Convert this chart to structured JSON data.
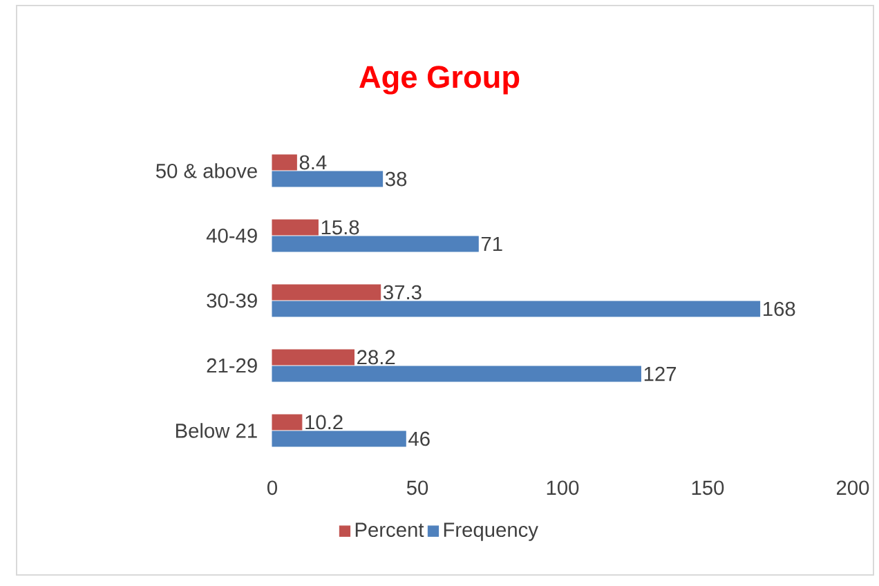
{
  "chart_data": {
    "type": "bar",
    "orientation": "horizontal",
    "title": "Age Group",
    "categories": [
      "50 & above",
      "40-49",
      "30-39",
      "21-29",
      "Below 21"
    ],
    "series": [
      {
        "name": "Percent",
        "color": "#c0504d",
        "values": [
          8.4,
          15.8,
          37.3,
          28.2,
          10.2
        ]
      },
      {
        "name": "Frequency",
        "color": "#4f81bd",
        "values": [
          38,
          71,
          168,
          127,
          46
        ]
      }
    ],
    "xlim": [
      0,
      200
    ],
    "xticks": [
      0,
      50,
      100,
      150,
      200
    ],
    "data_labels": true,
    "legend": "bottom"
  }
}
